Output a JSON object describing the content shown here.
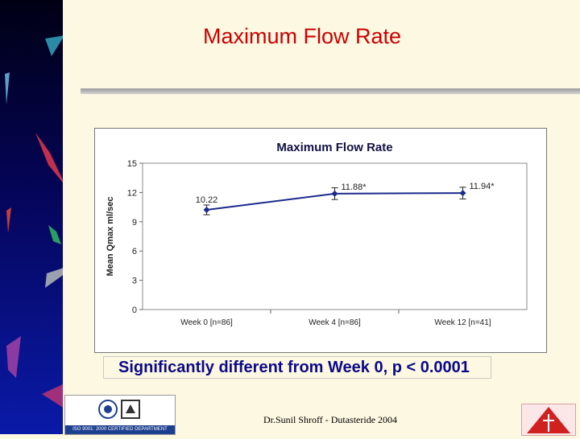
{
  "slide": {
    "title": "Maximum Flow Rate",
    "footnote": "Significantly different from Week 0, p < 0.0001",
    "credit": "Dr.Sunil Shroff - Dutasteride 2004",
    "iso_caption": "ISO 9001: 2000 CERTIFIED DEPARTMENT"
  },
  "colors": {
    "title": "#cc0000",
    "series": "#1a2a8a",
    "footnote": "#0a0a8a",
    "background": "#fdf8e2"
  },
  "icons": [
    "iso-logo-icon",
    "hospital-logo-icon"
  ],
  "chart_data": {
    "type": "line",
    "title": "Maximum Flow Rate",
    "xlabel": "",
    "ylabel": "Mean Qmax ml/sec",
    "categories": [
      "Week 0 [n=86]",
      "Week 4 [n=86]",
      "Week 12 [n=41]"
    ],
    "series": [
      {
        "values": [
          10.22,
          11.88,
          11.94
        ],
        "error": [
          0.5,
          0.6,
          0.6
        ],
        "labels": [
          "10.22",
          "11.88*",
          "11.94*"
        ]
      }
    ],
    "ylim": [
      0,
      15
    ],
    "yticks": [
      0,
      3,
      6,
      9,
      12,
      15
    ],
    "grid": false,
    "legend": "none"
  }
}
